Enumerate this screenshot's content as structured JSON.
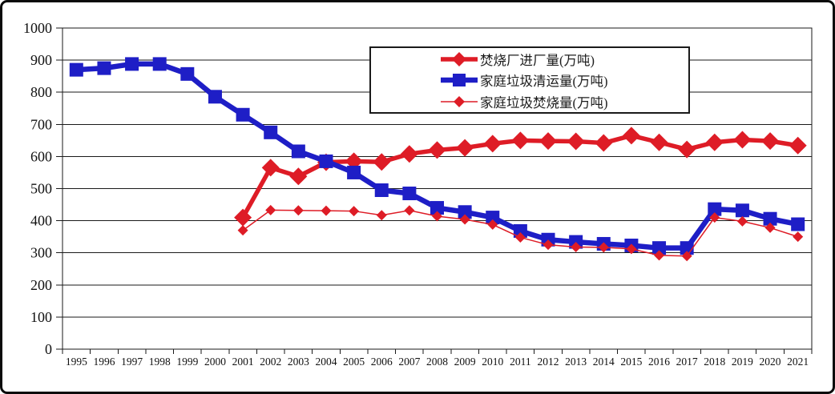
{
  "chart_data": {
    "type": "line",
    "title": "",
    "x": [
      1995,
      1996,
      1997,
      1998,
      1999,
      2000,
      2001,
      2002,
      2003,
      2004,
      2005,
      2006,
      2007,
      2008,
      2009,
      2010,
      2011,
      2012,
      2013,
      2014,
      2015,
      2016,
      2017,
      2018,
      2019,
      2020,
      2021
    ],
    "ylim": [
      0,
      1000
    ],
    "ytick_step": 100,
    "y_tick_labels": [
      "0",
      "100",
      "200",
      "300",
      "400",
      "500",
      "600",
      "700",
      "800",
      "900",
      "1000"
    ],
    "grid": true,
    "legend_position": "top-center-inside",
    "series": [
      {
        "key": "incinerator-plant-intake",
        "name": "焚烧厂进厂量(万吨)",
        "color": "#de1c26",
        "marker": "diamond",
        "marker_size": 22,
        "line_width": 5.5,
        "values": [
          null,
          null,
          null,
          null,
          null,
          null,
          410,
          565,
          538,
          582,
          585,
          583,
          608,
          620,
          627,
          640,
          650,
          648,
          647,
          642,
          665,
          644,
          622,
          644,
          652,
          648,
          634
        ]
      },
      {
        "key": "household-waste-collection",
        "name": "家庭垃圾清运量(万吨)",
        "color": "#1e1ec6",
        "marker": "square",
        "marker_size": 17,
        "line_width": 6.5,
        "values": [
          870,
          875,
          888,
          888,
          857,
          786,
          730,
          675,
          616,
          585,
          550,
          495,
          485,
          440,
          427,
          410,
          368,
          341,
          334,
          328,
          323,
          315,
          315,
          436,
          432,
          406,
          389
        ]
      },
      {
        "key": "household-waste-incineration",
        "name": "家庭垃圾焚烧量(万吨)",
        "color": "#de1c26",
        "marker": "diamond",
        "marker_size": 13,
        "line_width": 1.5,
        "values": [
          null,
          null,
          null,
          null,
          null,
          null,
          370,
          433,
          432,
          431,
          430,
          417,
          432,
          414,
          404,
          388,
          348,
          325,
          318,
          317,
          312,
          292,
          290,
          410,
          398,
          378,
          350
        ]
      }
    ]
  }
}
